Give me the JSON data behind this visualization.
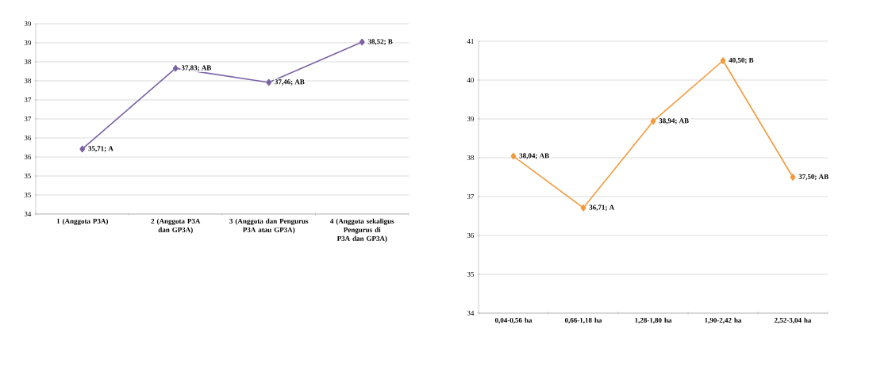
{
  "chart_data": [
    {
      "type": "line",
      "categories": [
        "1 (Anggota P3A)",
        "2 (Anggota P3A dan GP3A)",
        "3 (Anggota dan Pengurus P3A atau GP3A)",
        "4 (Anggota sekaligus Pengurus di P3A dan GP3A)"
      ],
      "values": [
        35.71,
        37.83,
        37.46,
        38.52
      ],
      "value_labels": [
        "35,71; A",
        "37,83; AB",
        "37,46; AB",
        "38,52; B"
      ],
      "color": "#7b63a6",
      "marker": "diamond",
      "grid": "y",
      "ylim": [
        34,
        39
      ],
      "yticks": [
        34,
        {
          "value": 34.5,
          "label": "35"
        },
        35,
        {
          "value": 35.5,
          "label": "36"
        },
        36,
        {
          "value": 36.5,
          "label": "37"
        },
        37,
        {
          "value": 37.5,
          "label": "38"
        },
        38,
        {
          "value": 38.5,
          "label": "39"
        },
        39
      ]
    },
    {
      "type": "line",
      "categories": [
        "0,04-0,56 ha",
        "0,66-1,18 ha",
        "1,28-1,80 ha",
        "1,90-2,42 ha",
        "2,52-3,04 ha"
      ],
      "values": [
        38.04,
        36.71,
        38.94,
        40.5,
        37.5
      ],
      "value_labels": [
        "38,04; AB",
        "36,71; A",
        "38,94; AB",
        "40,50; B",
        "37,50; AB"
      ],
      "color": "#f39a3c",
      "marker": "diamond",
      "grid": "y",
      "ylim": [
        34,
        41
      ],
      "yticks": [
        34,
        35,
        36,
        37,
        38,
        39,
        40,
        41
      ]
    }
  ]
}
